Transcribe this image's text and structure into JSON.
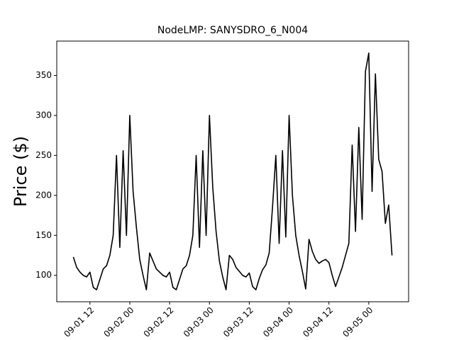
{
  "chart_data": {
    "type": "line",
    "title": "NodeLMP: SANYSDRO_6_N004",
    "y_label": "Price ($)",
    "x": [
      "09-01 07",
      "09-01 08",
      "09-01 09",
      "09-01 10",
      "09-01 11",
      "09-01 12",
      "09-01 13",
      "09-01 14",
      "09-01 15",
      "09-01 16",
      "09-01 17",
      "09-01 18",
      "09-01 19",
      "09-01 20",
      "09-01 21",
      "09-01 22",
      "09-01 23",
      "09-02 00",
      "09-02 01",
      "09-02 02",
      "09-02 03",
      "09-02 04",
      "09-02 05",
      "09-02 06",
      "09-02 07",
      "09-02 08",
      "09-02 09",
      "09-02 10",
      "09-02 11",
      "09-02 12",
      "09-02 13",
      "09-02 14",
      "09-02 15",
      "09-02 16",
      "09-02 17",
      "09-02 18",
      "09-02 19",
      "09-02 20",
      "09-02 21",
      "09-02 22",
      "09-02 23",
      "09-03 00",
      "09-03 01",
      "09-03 02",
      "09-03 03",
      "09-03 04",
      "09-03 05",
      "09-03 06",
      "09-03 07",
      "09-03 08",
      "09-03 09",
      "09-03 10",
      "09-03 11",
      "09-03 12",
      "09-03 13",
      "09-03 14",
      "09-03 15",
      "09-03 16",
      "09-03 17",
      "09-03 18",
      "09-03 19",
      "09-03 20",
      "09-03 21",
      "09-03 22",
      "09-03 23",
      "09-04 00",
      "09-04 01",
      "09-04 02",
      "09-04 03",
      "09-04 04",
      "09-04 05",
      "09-04 06",
      "09-04 07",
      "09-04 08",
      "09-04 09",
      "09-04 10",
      "09-04 11",
      "09-04 12",
      "09-04 13",
      "09-04 14",
      "09-04 15",
      "09-04 16",
      "09-04 17",
      "09-04 18",
      "09-04 19",
      "09-04 20",
      "09-04 21",
      "09-04 22",
      "09-04 23",
      "09-05 00",
      "09-05 01",
      "09-05 02",
      "09-05 03",
      "09-05 04",
      "09-05 05",
      "09-05 06",
      "09-05 07"
    ],
    "series": [
      {
        "color": "#000000",
        "values": [
          123,
          110,
          104,
          100,
          98,
          104,
          85,
          82,
          95,
          108,
          112,
          125,
          150,
          250,
          135,
          256,
          150,
          300,
          205,
          160,
          120,
          100,
          82,
          128,
          118,
          108,
          104,
          100,
          98,
          104,
          85,
          82,
          95,
          108,
          112,
          125,
          150,
          250,
          135,
          256,
          150,
          300,
          210,
          155,
          118,
          98,
          82,
          125,
          120,
          110,
          105,
          100,
          98,
          103,
          86,
          82,
          96,
          107,
          113,
          128,
          185,
          250,
          140,
          256,
          148,
          300,
          200,
          150,
          125,
          105,
          83,
          145,
          130,
          120,
          115,
          118,
          120,
          116,
          100,
          86,
          98,
          110,
          125,
          140,
          263,
          155,
          285,
          170,
          355,
          378,
          205,
          352,
          245,
          230,
          165,
          188,
          125
        ]
      }
    ],
    "xlim": [
      "09-01 02",
      "09-05 12"
    ],
    "xticks": [
      "09-01 12",
      "09-02 00",
      "09-02 12",
      "09-03 00",
      "09-03 12",
      "09-04 00",
      "09-04 12",
      "09-05 00"
    ],
    "ylim": [
      67,
      393
    ],
    "yticks": [
      100,
      150,
      200,
      250,
      300,
      350
    ]
  }
}
